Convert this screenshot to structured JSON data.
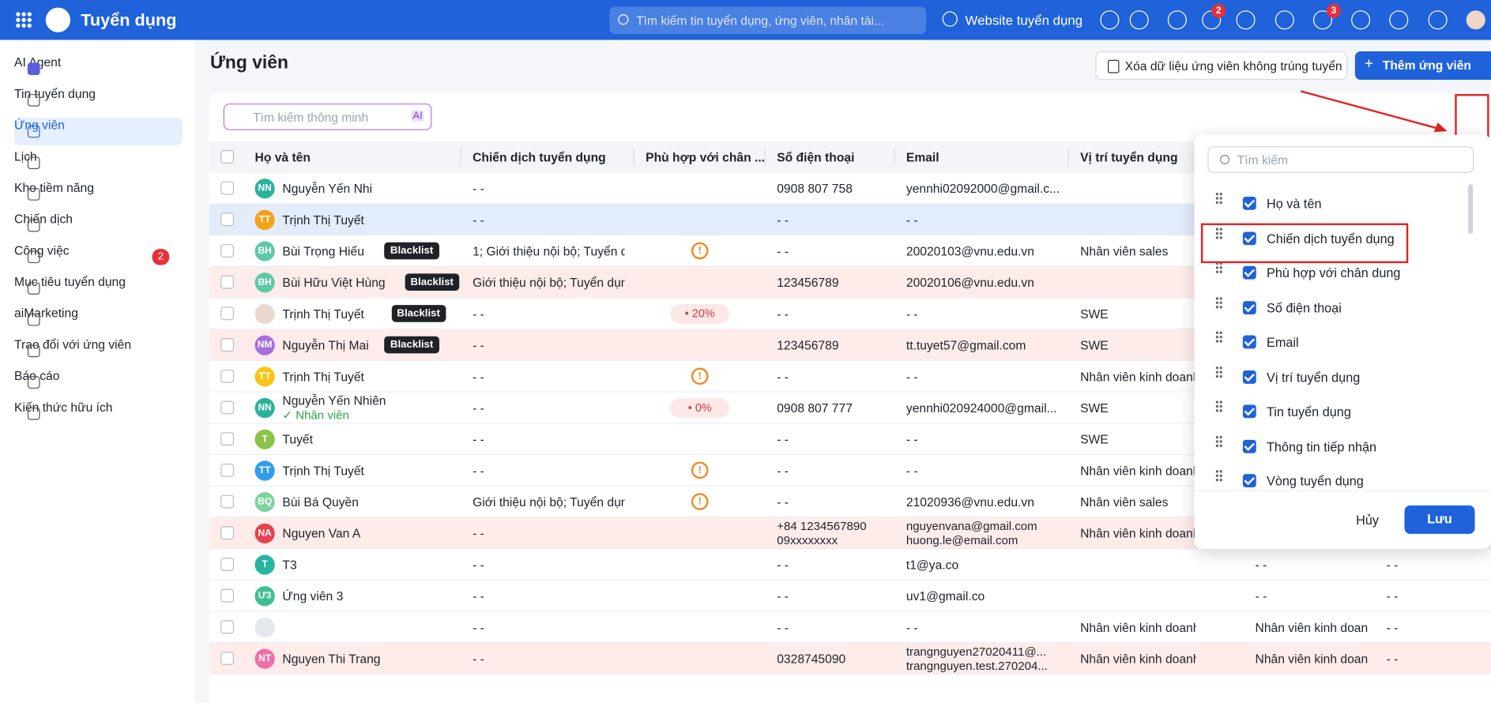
{
  "header": {
    "app_title": "Tuyển dụng",
    "search_placeholder": "Tìm kiếm tin tuyển dụng, ứng viên, nhân tài...",
    "website_link": "Website tuyển dụng",
    "badges": [
      2,
      3
    ]
  },
  "sidebar": [
    {
      "label": "AI Agent"
    },
    {
      "label": "Tin tuyển dụng"
    },
    {
      "label": "Ứng viên",
      "active": true
    },
    {
      "label": "Lịch"
    },
    {
      "label": "Kho tiềm năng"
    },
    {
      "label": "Chiến dịch"
    },
    {
      "label": "Công việc",
      "badge": 2
    },
    {
      "label": "Mục tiêu tuyển dụng"
    },
    {
      "label": "aiMarketing"
    },
    {
      "label": "Trao đổi với ứng viên"
    },
    {
      "label": "Báo cáo"
    },
    {
      "label": "Kiến thức hữu ích"
    }
  ],
  "page": {
    "title": "Ứng viên",
    "delete_button": "Xóa dữ liệu ứng viên không trúng tuyển",
    "add_button": "Thêm ứng viên",
    "smart_search": "Tìm kiếm thông minh",
    "ai_badge": "AI"
  },
  "table": {
    "columns": [
      "Họ và tên",
      "Chiến dịch tuyển dụng",
      "Phù hợp với chân ...",
      "Số điện thoại",
      "Email",
      "Vị trí tuyển dụng"
    ],
    "rows": [
      {
        "initials": "NN",
        "color": "#2bb39a",
        "name": "Nguyễn Yến Nhi",
        "campaign": "- -",
        "phone": [
          "0908 807 758"
        ],
        "email": [
          "yennhi02092000@gmail.c..."
        ]
      },
      {
        "initials": "TT",
        "color": "#f5a21b",
        "name": "Trịnh Thị Tuyết",
        "campaign": "- -",
        "phone": [
          "- -"
        ],
        "email": [
          "- -"
        ],
        "bg": "#e3ecfa"
      },
      {
        "initials": "BH",
        "color": "#5cc9a7",
        "name": "Bùi Trọng Hiếu",
        "tag": "Blacklist",
        "campaign": "1; Giới thiệu nội bộ; Tuyển dụ",
        "match_icon": "!",
        "phone": [
          "- -"
        ],
        "email": [
          "20020103@vnu.edu.vn"
        ],
        "position": "Nhân viên sales"
      },
      {
        "initials": "BH",
        "color": "#5cc9a7",
        "name": "Bùi Hữu Việt Hùng",
        "tag": "Blacklist",
        "campaign": "Giới thiệu nội bộ; Tuyển dụng",
        "phone": [
          "123456789"
        ],
        "email": [
          "20020106@vnu.edu.vn"
        ],
        "bg": "#fdecea"
      },
      {
        "initials": "",
        "color": "#e8d9cf",
        "name": "Trịnh Thị Tuyết",
        "tag": "Blacklist",
        "campaign": "- -",
        "match": "• 20%",
        "phone": [
          "- -"
        ],
        "email": [
          "- -"
        ],
        "position": "SWE"
      },
      {
        "initials": "NM",
        "color": "#a86de0",
        "name": "Nguyễn Thị Mai",
        "tag": "Blacklist",
        "campaign": "- -",
        "phone": [
          "123456789"
        ],
        "email": [
          "tt.tuyet57@gmail.com"
        ],
        "position": "SWE",
        "bg": "#fdecea"
      },
      {
        "initials": "TT",
        "color": "#f5c518",
        "name": "Trịnh Thị Tuyết",
        "campaign": "- -",
        "match_icon": "!",
        "phone": [
          "- -"
        ],
        "email": [
          "- -"
        ],
        "position": "Nhân viên kinh doanh"
      },
      {
        "initials": "NN",
        "color": "#2bb39a",
        "name": "Nguyễn Yến Nhiên",
        "sub": "✓ Nhân viên",
        "campaign": "- -",
        "match": "• 0%",
        "phone": [
          "0908 807 777"
        ],
        "email": [
          "yennhi020924000@gmail..."
        ],
        "position": "SWE"
      },
      {
        "initials": "T",
        "color": "#8bc34a",
        "name": "Tuyết",
        "campaign": "- -",
        "phone": [
          "- -"
        ],
        "email": [
          "- -"
        ],
        "position": "SWE"
      },
      {
        "initials": "TT",
        "color": "#2f9ee8",
        "name": "Trịnh Thị Tuyết",
        "campaign": "- -",
        "match_icon": "!",
        "phone": [
          "- -"
        ],
        "email": [
          "- -"
        ],
        "position": "Nhân viên kinh doanh"
      },
      {
        "initials": "BQ",
        "color": "#7ed3a0",
        "name": "Bùi Bá Quyền",
        "campaign": "Giới thiệu nội bộ; Tuyển dụng",
        "match_icon": "!",
        "phone": [
          "- -"
        ],
        "email": [
          "21020936@vnu.edu.vn"
        ],
        "position": "Nhân viên sales"
      },
      {
        "initials": "NA",
        "color": "#e8424f",
        "name": "Nguyen Van A",
        "campaign": "- -",
        "phone": [
          "+84 1234567890",
          "09xxxxxxxx"
        ],
        "email": [
          "nguyenvana@gmail.com",
          "huong.le@email.com"
        ],
        "position": "Nhân viên kinh doanh",
        "bg": "#fdecea"
      },
      {
        "initials": "T",
        "color": "#26b5a0",
        "name": "T3",
        "campaign": "- -",
        "phone": [
          "- -"
        ],
        "email": [
          "t1@ya.co"
        ],
        "col7": "- -",
        "col8": "- -"
      },
      {
        "initials": "Ư3",
        "color": "#3fbf8f",
        "name": "Ứng viên 3",
        "campaign": "- -",
        "phone": [
          "- -"
        ],
        "email": [
          "uv1@gmail.co"
        ],
        "col7": "- -",
        "col8": "- -"
      },
      {
        "initials": "",
        "color": "#e4e7ec",
        "name": null,
        "campaign": "- -",
        "phone": [
          "- -"
        ],
        "email": [
          "- -"
        ],
        "position": "Nhân viên kinh doanh",
        "col7": "Nhân viên kinh doan",
        "col8": "- -"
      },
      {
        "initials": "NT",
        "color": "#f06fa8",
        "name": "Nguyen Thi Trang",
        "campaign": "- -",
        "phone": [
          "0328745090"
        ],
        "email": [
          "trangnguyen27020411@...",
          "trangnguyen.test.270204..."
        ],
        "position": "Nhân viên kinh doanh",
        "col7": "Nhân viên kinh doan",
        "col8": "- -",
        "bg": "#fdecea"
      }
    ]
  },
  "column_settings": {
    "search_placeholder": "Tìm kiếm",
    "items": [
      "Họ và tên",
      "Chiến dịch tuyển dụng",
      "Phù hợp với chân dung",
      "Số điện thoại",
      "Email",
      "Vị trí tuyển dụng",
      "Tin tuyển dụng",
      "Thông tin tiếp nhận",
      "Vòng tuyển dụng"
    ],
    "cancel": "Hủy",
    "save": "Lưu"
  }
}
